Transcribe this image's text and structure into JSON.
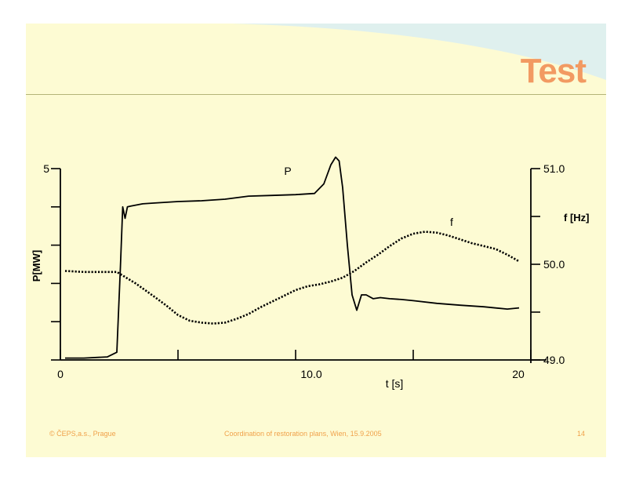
{
  "slide": {
    "title": "Test",
    "footer_left": "© ČEPS,a.s., Prague",
    "footer_center": "Coordination of restoration plans, Wien, 15.9.2005",
    "footer_right": "14",
    "colors": {
      "background": "#fdfbd3",
      "banner": "#dff0ee",
      "title": "#f29a62",
      "footer": "#f0a14a"
    }
  },
  "chart_data": {
    "type": "line",
    "title": "",
    "xlabel": "t [s]",
    "xlim": [
      0,
      20
    ],
    "x_ticks": [
      0,
      5,
      10,
      15,
      20
    ],
    "x_tick_labels": [
      "0",
      "",
      "10.0",
      "",
      "20"
    ],
    "ylabel_left": "P[MW]",
    "ylim_left": [
      0,
      5
    ],
    "y_left_ticks": [
      0,
      1,
      2,
      3,
      4,
      5
    ],
    "y_left_tick_labels": [
      "",
      "",
      "",
      "",
      "",
      "5"
    ],
    "ylabel_right": "f [Hz]",
    "ylim_right": [
      49.0,
      51.0
    ],
    "y_right_ticks": [
      49.0,
      49.5,
      50.0,
      50.5,
      51.0
    ],
    "y_right_tick_labels": [
      "49.0",
      "",
      "50.0",
      "",
      "51.0"
    ],
    "grid": false,
    "series": [
      {
        "name": "P",
        "axis": "left",
        "style": "solid",
        "x": [
          0.2,
          1.0,
          2.0,
          2.4,
          2.55,
          2.65,
          2.75,
          2.85,
          3.0,
          3.5,
          4.0,
          5.0,
          6.0,
          7.0,
          8.0,
          9.0,
          10.0,
          10.8,
          11.2,
          11.5,
          11.7,
          11.85,
          12.0,
          12.2,
          12.4,
          12.6,
          12.8,
          13.0,
          13.3,
          13.6,
          14.0,
          14.5,
          15.0,
          16.0,
          17.0,
          18.0,
          19.0,
          19.5
        ],
        "y": [
          0.05,
          0.05,
          0.08,
          0.2,
          2.4,
          4.0,
          3.7,
          4.0,
          4.02,
          4.08,
          4.1,
          4.14,
          4.16,
          4.2,
          4.28,
          4.3,
          4.32,
          4.35,
          4.6,
          5.1,
          5.3,
          5.2,
          4.5,
          3.0,
          1.7,
          1.3,
          1.7,
          1.7,
          1.6,
          1.63,
          1.6,
          1.58,
          1.55,
          1.48,
          1.43,
          1.39,
          1.33,
          1.36
        ]
      },
      {
        "name": "f",
        "axis": "right",
        "style": "dotted",
        "x": [
          0.2,
          1.0,
          2.0,
          2.4,
          2.8,
          3.2,
          3.6,
          4.0,
          4.5,
          5.0,
          5.5,
          6.0,
          6.5,
          7.0,
          7.5,
          8.0,
          8.5,
          9.0,
          9.5,
          10.0,
          10.5,
          11.0,
          11.5,
          12.0,
          12.5,
          13.0,
          13.5,
          14.0,
          14.5,
          15.0,
          15.5,
          16.0,
          16.5,
          17.0,
          17.5,
          18.0,
          18.5,
          19.0,
          19.5
        ],
        "y": [
          49.93,
          49.92,
          49.92,
          49.92,
          49.86,
          49.8,
          49.73,
          49.66,
          49.57,
          49.47,
          49.41,
          49.39,
          49.38,
          49.39,
          49.43,
          49.48,
          49.55,
          49.61,
          49.67,
          49.73,
          49.77,
          49.79,
          49.82,
          49.86,
          49.93,
          50.02,
          50.1,
          50.19,
          50.27,
          50.32,
          50.34,
          50.33,
          50.3,
          50.26,
          50.22,
          50.19,
          50.16,
          50.1,
          50.03
        ]
      }
    ],
    "annotations": [
      "P",
      "f"
    ]
  }
}
